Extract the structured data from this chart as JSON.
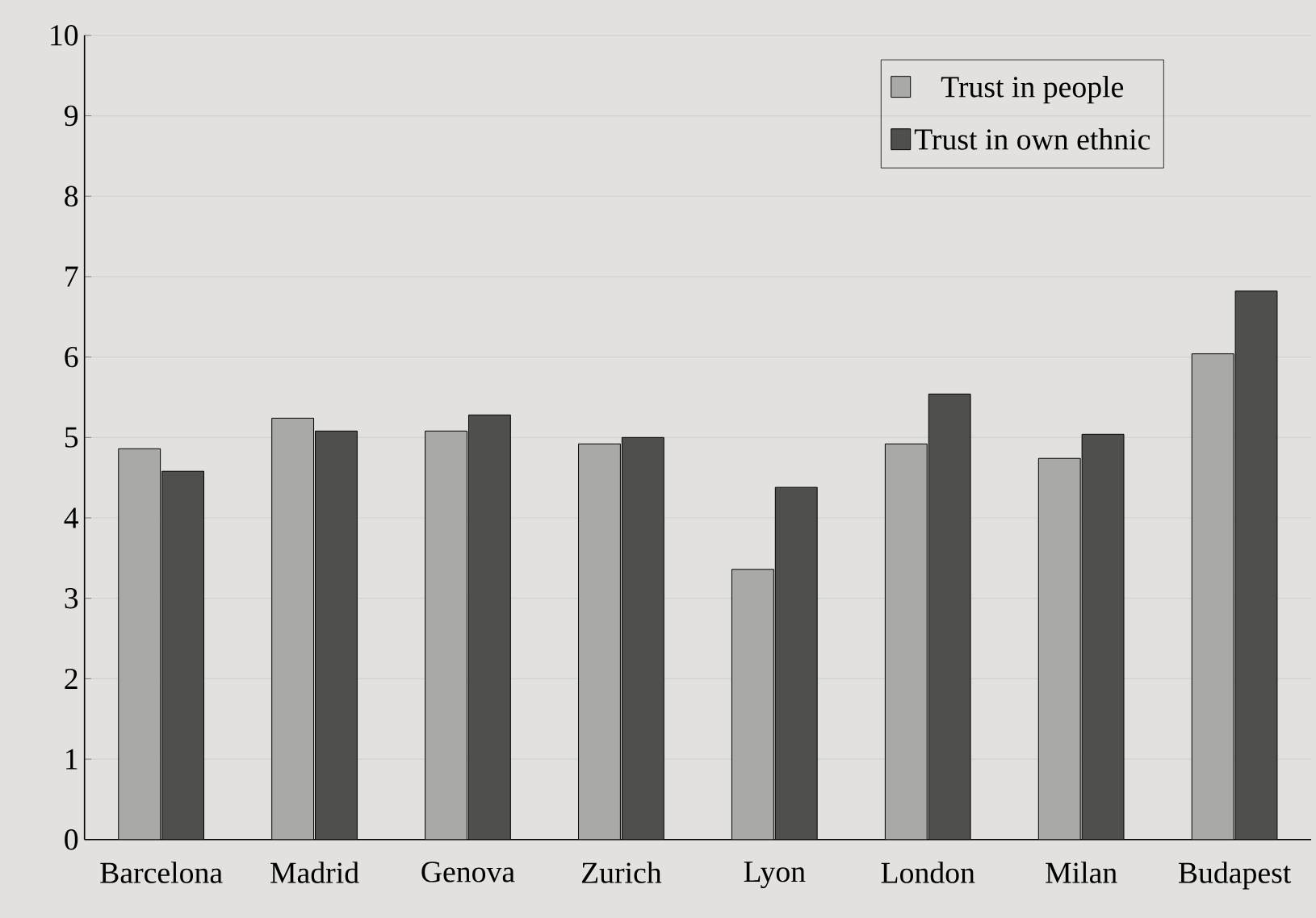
{
  "chart_data": {
    "type": "bar",
    "categories": [
      "Barcelona",
      "Madrid",
      "Genova",
      "Zurich",
      "Lyon",
      "London",
      "Milan",
      "Budapest"
    ],
    "series": [
      {
        "name": "Trust in people",
        "color": "#a9a9a7",
        "values": [
          4.86,
          5.24,
          5.08,
          4.92,
          3.36,
          4.92,
          4.74,
          6.04
        ]
      },
      {
        "name": "Trust in own ethnic",
        "color": "#4f4f4d",
        "values": [
          4.58,
          5.08,
          5.28,
          5.0,
          4.38,
          5.54,
          5.04,
          6.82
        ]
      }
    ],
    "ylim": [
      0,
      10
    ],
    "yticks": [
      0,
      1,
      2,
      3,
      4,
      5,
      6,
      7,
      8,
      9,
      10
    ],
    "grid": "y",
    "legend": "top right"
  }
}
